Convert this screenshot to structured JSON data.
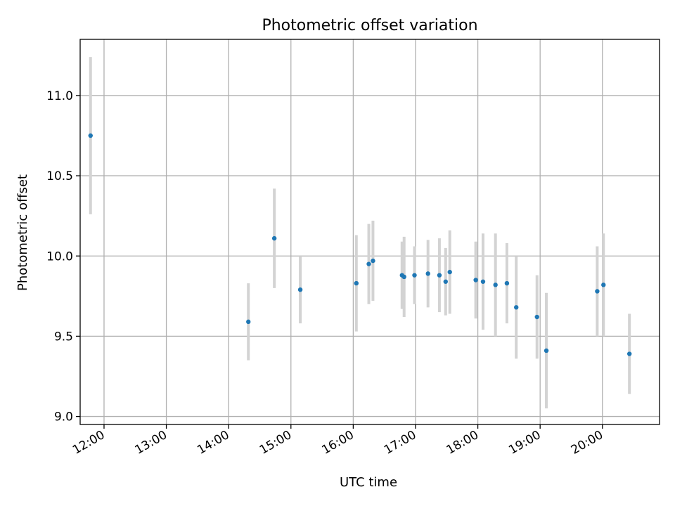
{
  "colors": {
    "points": "#1f77b4",
    "errorbars": "#d3d3d3",
    "grid": "#b0b0b0"
  },
  "chart_data": {
    "type": "scatter",
    "title": "Photometric offset variation",
    "xlabel": "UTC time",
    "ylabel": "Photometric offset",
    "x_axis": "time",
    "xlim": [
      "11:37",
      "20:55"
    ],
    "ylim": [
      8.95,
      11.35
    ],
    "xticks": [
      "12:00",
      "13:00",
      "14:00",
      "15:00",
      "16:00",
      "17:00",
      "18:00",
      "19:00",
      "20:00"
    ],
    "yticks": [
      "9.0",
      "9.5",
      "10.0",
      "10.5",
      "11.0"
    ],
    "grid": true,
    "series": [
      {
        "marker": "dot",
        "error_bars": true,
        "points": [
          {
            "x": "11:47",
            "y": 10.75,
            "yerr": 0.49
          },
          {
            "x": "14:19",
            "y": 9.59,
            "yerr": 0.24
          },
          {
            "x": "14:44",
            "y": 10.11,
            "yerr": 0.31
          },
          {
            "x": "15:09",
            "y": 9.79,
            "yerr": 0.21
          },
          {
            "x": "16:03",
            "y": 9.83,
            "yerr": 0.3
          },
          {
            "x": "16:15",
            "y": 9.95,
            "yerr": 0.25
          },
          {
            "x": "16:19",
            "y": 9.97,
            "yerr": 0.25
          },
          {
            "x": "16:47",
            "y": 9.88,
            "yerr": 0.21
          },
          {
            "x": "16:49",
            "y": 9.87,
            "yerr": 0.25
          },
          {
            "x": "16:59",
            "y": 9.88,
            "yerr": 0.18
          },
          {
            "x": "17:12",
            "y": 9.89,
            "yerr": 0.21
          },
          {
            "x": "17:23",
            "y": 9.88,
            "yerr": 0.23
          },
          {
            "x": "17:29",
            "y": 9.84,
            "yerr": 0.21
          },
          {
            "x": "17:33",
            "y": 9.9,
            "yerr": 0.26
          },
          {
            "x": "17:58",
            "y": 9.85,
            "yerr": 0.24
          },
          {
            "x": "18:05",
            "y": 9.84,
            "yerr": 0.3
          },
          {
            "x": "18:17",
            "y": 9.82,
            "yerr": 0.32
          },
          {
            "x": "18:28",
            "y": 9.83,
            "yerr": 0.25
          },
          {
            "x": "18:37",
            "y": 9.68,
            "yerr": 0.32
          },
          {
            "x": "18:57",
            "y": 9.62,
            "yerr": 0.26
          },
          {
            "x": "19:06",
            "y": 9.41,
            "yerr": 0.36
          },
          {
            "x": "19:55",
            "y": 9.78,
            "yerr": 0.28
          },
          {
            "x": "20:01",
            "y": 9.82,
            "yerr": 0.32
          },
          {
            "x": "20:26",
            "y": 9.39,
            "yerr": 0.25
          }
        ]
      }
    ]
  }
}
